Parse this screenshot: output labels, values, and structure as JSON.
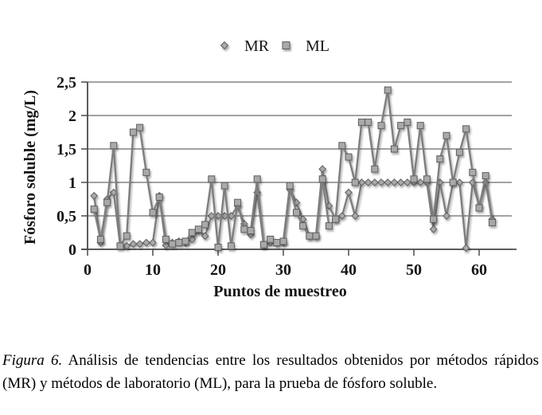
{
  "chart_data": {
    "type": "line",
    "title": "",
    "xlabel": "Puntos de muestreo",
    "ylabel": "Fósforo soluble (mg/L)",
    "xlim": [
      0,
      65
    ],
    "ylim": [
      0,
      2.5
    ],
    "x_ticks": [
      0,
      10,
      20,
      30,
      40,
      50,
      60
    ],
    "y_ticks": [
      {
        "value": 0.0,
        "label": "0"
      },
      {
        "value": 0.5,
        "label": "0,5"
      },
      {
        "value": 1.0,
        "label": "1"
      },
      {
        "value": 1.5,
        "label": "1,5"
      },
      {
        "value": 2.0,
        "label": "2"
      },
      {
        "value": 2.5,
        "label": "2,5"
      }
    ],
    "grid": "horizontal",
    "legend_position": "top-center",
    "x": [
      1,
      2,
      3,
      4,
      5,
      6,
      7,
      8,
      9,
      10,
      11,
      12,
      13,
      14,
      15,
      16,
      17,
      18,
      19,
      20,
      21,
      22,
      23,
      24,
      25,
      26,
      27,
      28,
      29,
      30,
      31,
      32,
      33,
      34,
      35,
      36,
      37,
      38,
      39,
      40,
      41,
      42,
      43,
      44,
      45,
      46,
      47,
      48,
      49,
      50,
      51,
      52,
      53,
      54,
      55,
      56,
      57,
      58,
      59,
      60,
      61,
      62
    ],
    "series": [
      {
        "name": "MR",
        "marker": "diamond",
        "values": [
          0.8,
          0.1,
          0.75,
          0.85,
          0.07,
          0.05,
          0.08,
          0.08,
          0.1,
          0.1,
          0.8,
          0.06,
          0.1,
          0.12,
          0.1,
          0.15,
          0.28,
          0.2,
          0.5,
          0.5,
          0.5,
          0.5,
          0.65,
          0.38,
          0.22,
          0.85,
          0.07,
          0.1,
          0.1,
          0.1,
          0.9,
          0.7,
          0.45,
          0.2,
          0.2,
          1.2,
          0.65,
          0.45,
          0.5,
          0.85,
          0.5,
          1.0,
          1.0,
          1.0,
          1.0,
          1.0,
          1.0,
          1.0,
          1.0,
          1.0,
          1.0,
          1.0,
          0.3,
          1.0,
          0.5,
          1.0,
          1.0,
          0.02,
          1.0,
          0.65,
          1.0,
          0.45
        ]
      },
      {
        "name": "ML",
        "marker": "square",
        "values": [
          0.6,
          0.15,
          0.7,
          1.55,
          0.05,
          0.2,
          1.75,
          1.82,
          1.15,
          0.55,
          0.78,
          0.15,
          0.08,
          0.1,
          0.12,
          0.25,
          0.3,
          0.37,
          1.05,
          0.03,
          0.95,
          0.05,
          0.7,
          0.3,
          0.28,
          1.05,
          0.07,
          0.15,
          0.1,
          0.12,
          0.95,
          0.55,
          0.35,
          0.2,
          0.2,
          1.05,
          0.35,
          0.45,
          1.55,
          1.38,
          1.0,
          1.9,
          1.9,
          1.2,
          1.85,
          2.38,
          1.5,
          1.85,
          1.9,
          1.05,
          1.85,
          1.05,
          0.45,
          1.35,
          1.7,
          1.0,
          1.45,
          1.8,
          1.15,
          0.62,
          1.1,
          0.4
        ]
      }
    ],
    "colors": {
      "series_line": "#7e7e7e",
      "marker_fill": "#a9a9a9",
      "marker_edge": "#5e5e5e",
      "grid_line": "#6b6b6b",
      "axis_line": "#4a4a4a",
      "text": "#151515"
    }
  },
  "caption": {
    "label": "Figura 6.",
    "text": " Análisis de tendencias entre los resultados obtenidos por métodos rápidos (MR) y métodos de laboratorio (ML), para la prueba de fósforo soluble."
  }
}
